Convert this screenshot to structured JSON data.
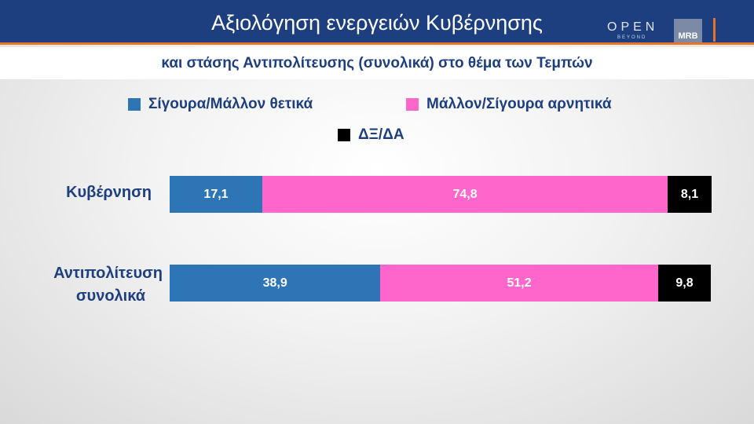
{
  "header": {
    "title": "Αξιολόγηση ενεργειών Κυβέρνησης",
    "logo_open": "OPEN",
    "logo_beyond": "BEYOND",
    "logo_mrb": "MRB"
  },
  "subtitle": "και στάσης Αντιπολίτευσης (συνολικά) στο θέμα των Τεμπών",
  "chart_data": {
    "type": "bar",
    "orientation": "horizontal-stacked",
    "categories": [
      "Κυβέρνηση",
      "Αντιπολίτευση συνολικά"
    ],
    "series": [
      {
        "name": "Σίγουρα/Μάλλον θετικά",
        "color": "#2e75b6",
        "values": [
          17.1,
          38.9
        ],
        "labels": [
          "17,1",
          "38,9"
        ]
      },
      {
        "name": "Μάλλον/Σίγουρα αρνητικά",
        "color": "#ff66cc",
        "values": [
          74.8,
          51.2
        ],
        "labels": [
          "74,8",
          "51,2"
        ]
      },
      {
        "name": "ΔΞ/ΔΑ",
        "color": "#000000",
        "values": [
          8.1,
          9.8
        ],
        "labels": [
          "8,1",
          "9,8"
        ]
      }
    ],
    "legend": "top",
    "xlim": [
      0,
      100
    ]
  },
  "rows": [
    {
      "label1": "Κυβέρνηση",
      "label2": ""
    },
    {
      "label1": "Αντιπολίτευση",
      "label2": "συνολικά"
    }
  ]
}
